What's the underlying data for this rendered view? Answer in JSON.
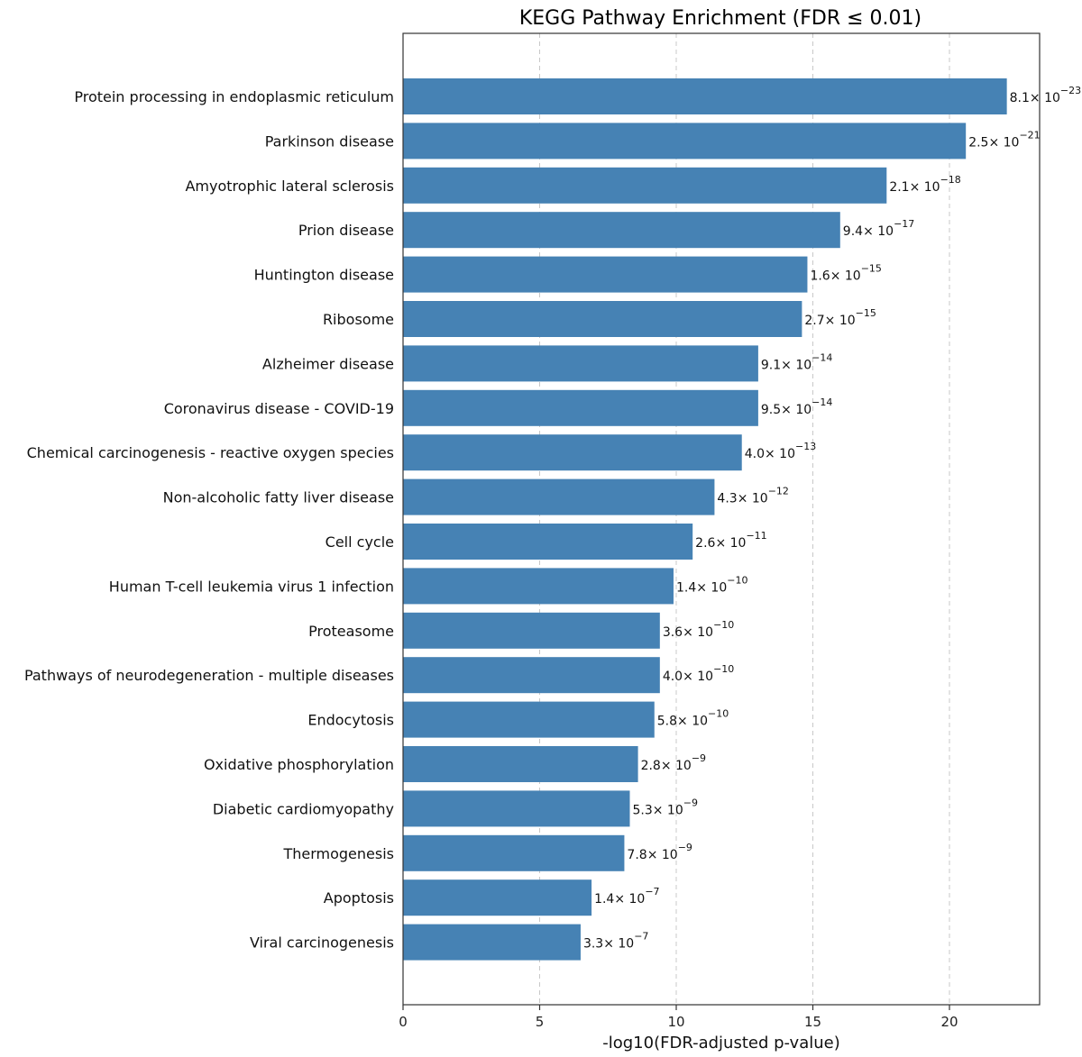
{
  "chart_data": {
    "type": "bar",
    "orientation": "horizontal",
    "title": "KEGG Pathway Enrichment (FDR ≤ 0.01)",
    "xlabel": "-log10(FDR-adjusted p-value)",
    "ylabel": "",
    "xlim": [
      0,
      23.3
    ],
    "xticks": [
      0,
      5,
      10,
      15,
      20
    ],
    "grid": "x-dashed",
    "bar_color": "#4682b4",
    "categories": [
      "Protein processing in endoplasmic reticulum",
      "Parkinson disease",
      "Amyotrophic lateral sclerosis",
      "Prion disease",
      "Huntington disease",
      "Ribosome",
      "Alzheimer disease",
      "Coronavirus disease - COVID-19",
      "Chemical carcinogenesis - reactive oxygen species",
      "Non-alcoholic fatty liver disease",
      "Cell cycle",
      "Human T-cell leukemia virus 1 infection",
      "Proteasome",
      "Pathways of neurodegeneration - multiple diseases",
      "Endocytosis",
      "Oxidative phosphorylation",
      "Diabetic cardiomyopathy",
      "Thermogenesis",
      "Apoptosis",
      "Viral carcinogenesis"
    ],
    "values": [
      22.1,
      20.6,
      17.7,
      16.0,
      14.8,
      14.6,
      13.0,
      13.0,
      12.4,
      11.4,
      10.6,
      9.9,
      9.4,
      9.4,
      9.2,
      8.6,
      8.3,
      8.1,
      6.9,
      6.5
    ],
    "data_labels": [
      {
        "mantissa": "8.1",
        "exponent": "−23"
      },
      {
        "mantissa": "2.5",
        "exponent": "−21"
      },
      {
        "mantissa": "2.1",
        "exponent": "−18"
      },
      {
        "mantissa": "9.4",
        "exponent": "−17"
      },
      {
        "mantissa": "1.6",
        "exponent": "−15"
      },
      {
        "mantissa": "2.7",
        "exponent": "−15"
      },
      {
        "mantissa": "9.1",
        "exponent": "−14"
      },
      {
        "mantissa": "9.5",
        "exponent": "−14"
      },
      {
        "mantissa": "4.0",
        "exponent": "−13"
      },
      {
        "mantissa": "4.3",
        "exponent": "−12"
      },
      {
        "mantissa": "2.6",
        "exponent": "−11"
      },
      {
        "mantissa": "1.4",
        "exponent": "−10"
      },
      {
        "mantissa": "3.6",
        "exponent": "−10"
      },
      {
        "mantissa": "4.0",
        "exponent": "−10"
      },
      {
        "mantissa": "5.8",
        "exponent": "−10"
      },
      {
        "mantissa": "2.8",
        "exponent": "−9"
      },
      {
        "mantissa": "5.3",
        "exponent": "−9"
      },
      {
        "mantissa": "7.8",
        "exponent": "−9"
      },
      {
        "mantissa": "1.4",
        "exponent": "−7"
      },
      {
        "mantissa": "3.3",
        "exponent": "−7"
      }
    ]
  }
}
